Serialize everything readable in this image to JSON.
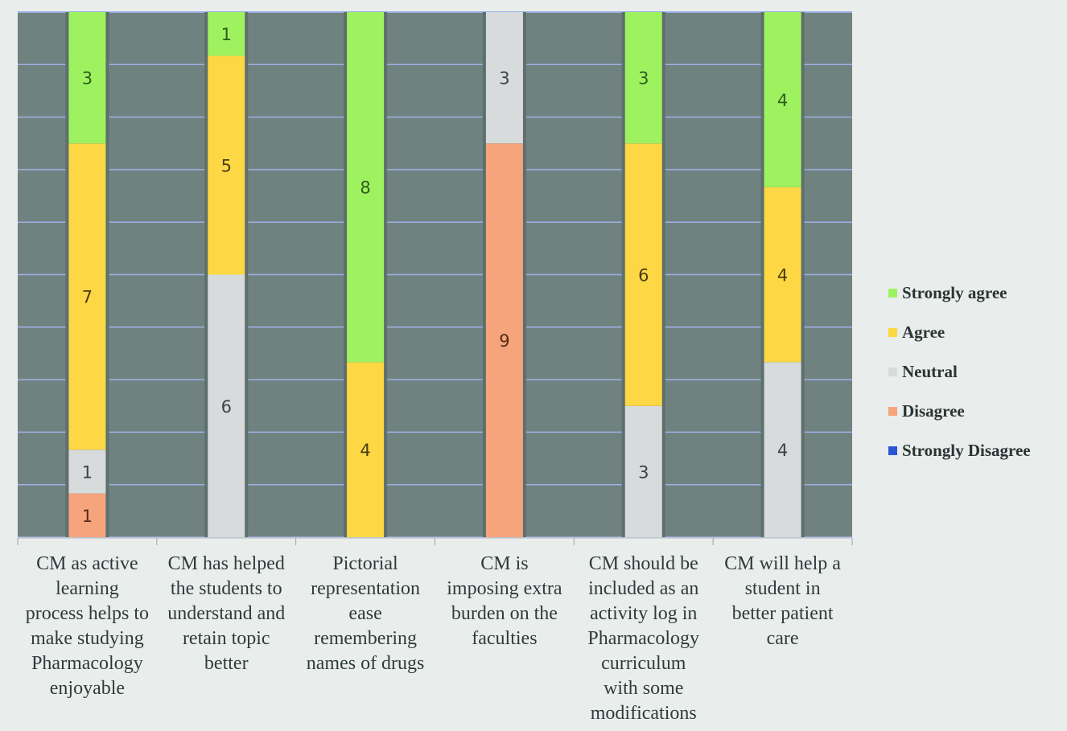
{
  "chart_data": {
    "type": "bar",
    "stacked": true,
    "percent_stacked": true,
    "title": "",
    "xlabel": "",
    "ylabel": "",
    "ylim": [
      0,
      12
    ],
    "grid": true,
    "legend_position": "right",
    "plot_background": "#6f8280",
    "gridline_color": "#9fb0e6",
    "categories": [
      "CM as active learning process helps to make studying Pharmacology enjoyable",
      "CM has helped the students to understand and retain topic better",
      "Pictorial representation ease remembering names of drugs",
      "CM is imposing extra burden on the faculties",
      "CM should be included as an activity log in Pharmacology curriculum with some modifications",
      "CM will help a student in better patient care"
    ],
    "category_lines": [
      "CM as active\nlearning\nprocess helps to\nmake studying\nPharmacology\nenjoyable",
      "CM has helped\nthe students to\nunderstand and\nretain topic\nbetter",
      "Pictorial\nrepresentation\nease\nremembering\nnames of drugs",
      "CM is\nimposing extra\nburden on the\nfaculties",
      "CM should be\nincluded as an\nactivity log in\nPharmacology\ncurriculum\nwith some\nmodifications",
      "CM will help a\nstudent in\nbetter patient\ncare"
    ],
    "series": [
      {
        "name": "Strongly Disagree",
        "color": "#2a56d6",
        "values": [
          0,
          0,
          0,
          0,
          0,
          0
        ]
      },
      {
        "name": "Disagree",
        "color": "#f6a47c",
        "values": [
          1,
          0,
          0,
          9,
          0,
          0
        ]
      },
      {
        "name": "Neutral",
        "color": "#d7dbdb",
        "values": [
          1,
          6,
          0,
          3,
          3,
          4
        ]
      },
      {
        "name": "Agree",
        "color": "#fdd844",
        "values": [
          7,
          5,
          4,
          0,
          6,
          4
        ]
      },
      {
        "name": "Strongly agree",
        "color": "#9ff25f",
        "values": [
          3,
          1,
          8,
          0,
          3,
          4
        ]
      }
    ],
    "legend": [
      "Strongly agree",
      "Agree",
      "Neutral",
      "Disagree",
      "Strongly Disagree"
    ]
  }
}
